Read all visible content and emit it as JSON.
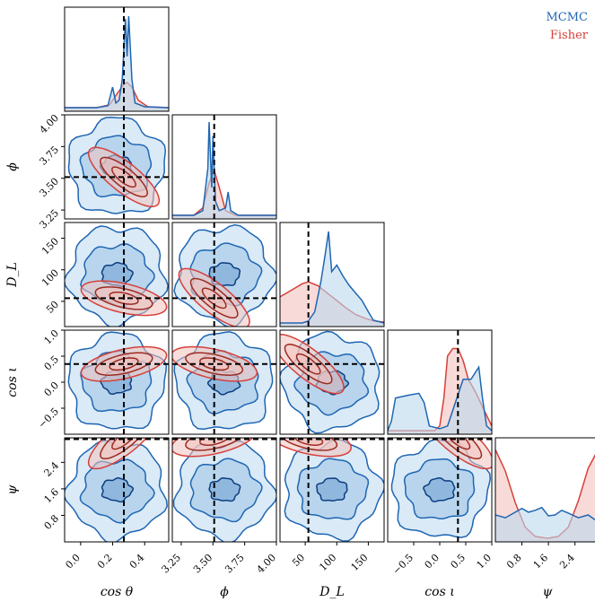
{
  "legend": [
    {
      "name": "MCMC",
      "color": "#1f66b3"
    },
    {
      "name": "Fisher",
      "color": "#d6403a"
    }
  ],
  "colors": {
    "mcmc_line": "#1f66b3",
    "mcmc_fill": "#bcd8ef",
    "mcmc_dark": "#0b3e80",
    "fisher_line": "#d6403a",
    "fisher_fill": "#f3c3be",
    "fisher_dark": "#9c2b22",
    "truth": "#000000"
  },
  "chart_data": {
    "type": "corner",
    "parameters": [
      {
        "id": "costheta",
        "label": "cos θ",
        "range": [
          -0.1,
          0.55
        ],
        "ticks": [
          "0.0",
          "0.2",
          "0.4"
        ],
        "tick_values": [
          0.0,
          0.2,
          0.4
        ],
        "truth": 0.27
      },
      {
        "id": "phi",
        "label": "ϕ",
        "range": [
          3.18,
          4.0
        ],
        "ticks": [
          "3.25",
          "3.50",
          "3.75",
          "4.00"
        ],
        "tick_values": [
          3.25,
          3.5,
          3.75,
          4.0
        ],
        "truth": 3.51
      },
      {
        "id": "DL",
        "label": "D_L",
        "range": [
          10,
          175
        ],
        "ticks": [
          "50",
          "100",
          "150"
        ],
        "tick_values": [
          50,
          100,
          150
        ],
        "truth": 55
      },
      {
        "id": "cosiota",
        "label": "cos ι",
        "range": [
          -1.0,
          1.0
        ],
        "ticks": [
          "−0.5",
          "0.0",
          "0.5",
          "1.0"
        ],
        "tick_values": [
          -0.5,
          0.0,
          0.5,
          1.0
        ],
        "truth": 0.35
      },
      {
        "id": "psi",
        "label": "ψ",
        "range": [
          0.0,
          3.14
        ],
        "ticks": [
          "0.8",
          "1.6",
          "2.4"
        ],
        "tick_values": [
          0.8,
          1.6,
          2.4
        ],
        "truth": 3.1
      }
    ],
    "row_ticks": {
      "phi": {
        "ticks": [
          "3.25",
          "3.50",
          "3.75",
          "4.00"
        ],
        "tick_values": [
          3.25,
          3.5,
          3.75,
          4.0
        ]
      },
      "DL": {
        "ticks": [
          "50",
          "100",
          "150"
        ],
        "tick_values": [
          50,
          100,
          150
        ]
      },
      "cosiota": {
        "ticks": [
          "−0.5",
          "0.0",
          "0.5",
          "1.0"
        ],
        "tick_values": [
          -0.5,
          0.0,
          0.5,
          1.0
        ]
      },
      "psi": {
        "ticks": [
          "0.8",
          "1.6",
          "2.4"
        ],
        "tick_values": [
          0.8,
          1.6,
          2.4
        ]
      }
    },
    "marginals": {
      "costheta": {
        "mcmc": [
          [
            -0.1,
            0
          ],
          [
            0.1,
            0
          ],
          [
            0.17,
            0.02
          ],
          [
            0.2,
            0.22
          ],
          [
            0.22,
            0.05
          ],
          [
            0.24,
            0.08
          ],
          [
            0.26,
            0.3
          ],
          [
            0.28,
            0.95
          ],
          [
            0.29,
            0.55
          ],
          [
            0.3,
            0.98
          ],
          [
            0.32,
            0.3
          ],
          [
            0.34,
            0.05
          ],
          [
            0.4,
            0.01
          ],
          [
            0.55,
            0
          ]
        ],
        "fisher": [
          [
            -0.1,
            0
          ],
          [
            0.1,
            0
          ],
          [
            0.18,
            0.03
          ],
          [
            0.22,
            0.13
          ],
          [
            0.27,
            0.25
          ],
          [
            0.29,
            0.27
          ],
          [
            0.32,
            0.22
          ],
          [
            0.36,
            0.08
          ],
          [
            0.42,
            0.01
          ],
          [
            0.55,
            0
          ]
        ]
      },
      "phi": {
        "mcmc": [
          [
            3.18,
            0
          ],
          [
            3.35,
            0
          ],
          [
            3.42,
            0.05
          ],
          [
            3.46,
            0.5
          ],
          [
            3.47,
            1.0
          ],
          [
            3.49,
            0.3
          ],
          [
            3.5,
            0.85
          ],
          [
            3.52,
            0.15
          ],
          [
            3.55,
            0.05
          ],
          [
            3.6,
            0.08
          ],
          [
            3.62,
            0.25
          ],
          [
            3.64,
            0.05
          ],
          [
            3.7,
            0
          ],
          [
            4.0,
            0
          ]
        ],
        "fisher": [
          [
            3.18,
            0
          ],
          [
            3.35,
            0
          ],
          [
            3.42,
            0.08
          ],
          [
            3.47,
            0.35
          ],
          [
            3.51,
            0.48
          ],
          [
            3.55,
            0.3
          ],
          [
            3.6,
            0.05
          ],
          [
            3.68,
            0
          ],
          [
            4.0,
            0
          ]
        ]
      },
      "DL": {
        "mcmc": [
          [
            10,
            0
          ],
          [
            45,
            0
          ],
          [
            55,
            0.02
          ],
          [
            65,
            0.12
          ],
          [
            75,
            0.45
          ],
          [
            82,
            0.75
          ],
          [
            87,
            0.98
          ],
          [
            92,
            0.55
          ],
          [
            100,
            0.62
          ],
          [
            110,
            0.5
          ],
          [
            120,
            0.4
          ],
          [
            130,
            0.32
          ],
          [
            140,
            0.24
          ],
          [
            150,
            0.12
          ],
          [
            158,
            0.03
          ],
          [
            175,
            0
          ]
        ],
        "fisher": [
          [
            10,
            0.28
          ],
          [
            30,
            0.36
          ],
          [
            45,
            0.42
          ],
          [
            55,
            0.44
          ],
          [
            70,
            0.4
          ],
          [
            85,
            0.32
          ],
          [
            100,
            0.24
          ],
          [
            115,
            0.16
          ],
          [
            130,
            0.09
          ],
          [
            145,
            0.05
          ],
          [
            160,
            0.02
          ],
          [
            175,
            0.01
          ]
        ]
      },
      "cosiota": {
        "mcmc": [
          [
            -1.0,
            0
          ],
          [
            -0.93,
            0.1
          ],
          [
            -0.85,
            0.35
          ],
          [
            -0.6,
            0.38
          ],
          [
            -0.4,
            0.4
          ],
          [
            -0.3,
            0.3
          ],
          [
            -0.2,
            0.05
          ],
          [
            0.0,
            0.02
          ],
          [
            0.15,
            0.05
          ],
          [
            0.3,
            0.3
          ],
          [
            0.45,
            0.55
          ],
          [
            0.6,
            0.55
          ],
          [
            0.75,
            0.68
          ],
          [
            0.82,
            0.35
          ],
          [
            0.9,
            0.05
          ],
          [
            1.0,
            0
          ]
        ],
        "fisher": [
          [
            -1.0,
            0
          ],
          [
            -0.1,
            0
          ],
          [
            0.0,
            0.05
          ],
          [
            0.08,
            0.35
          ],
          [
            0.15,
            0.8
          ],
          [
            0.25,
            0.88
          ],
          [
            0.35,
            0.88
          ],
          [
            0.45,
            0.75
          ],
          [
            0.55,
            0.55
          ],
          [
            0.7,
            0.4
          ],
          [
            0.85,
            0.22
          ],
          [
            1.0,
            0.05
          ]
        ]
      },
      "psi": {
        "mcmc": [
          [
            0.0,
            0.25
          ],
          [
            0.3,
            0.22
          ],
          [
            0.6,
            0.28
          ],
          [
            0.8,
            0.32
          ],
          [
            1.0,
            0.28
          ],
          [
            1.2,
            0.3
          ],
          [
            1.4,
            0.33
          ],
          [
            1.6,
            0.24
          ],
          [
            1.8,
            0.25
          ],
          [
            2.0,
            0.3
          ],
          [
            2.2,
            0.27
          ],
          [
            2.5,
            0.22
          ],
          [
            2.8,
            0.25
          ],
          [
            3.0,
            0.2
          ],
          [
            3.14,
            0.22
          ]
        ],
        "fisher": [
          [
            0.0,
            0.95
          ],
          [
            0.3,
            0.72
          ],
          [
            0.6,
            0.38
          ],
          [
            0.9,
            0.12
          ],
          [
            1.2,
            0.02
          ],
          [
            1.57,
            0.0
          ],
          [
            1.9,
            0.02
          ],
          [
            2.2,
            0.12
          ],
          [
            2.5,
            0.4
          ],
          [
            2.8,
            0.75
          ],
          [
            3.14,
            0.98
          ]
        ]
      }
    }
  }
}
